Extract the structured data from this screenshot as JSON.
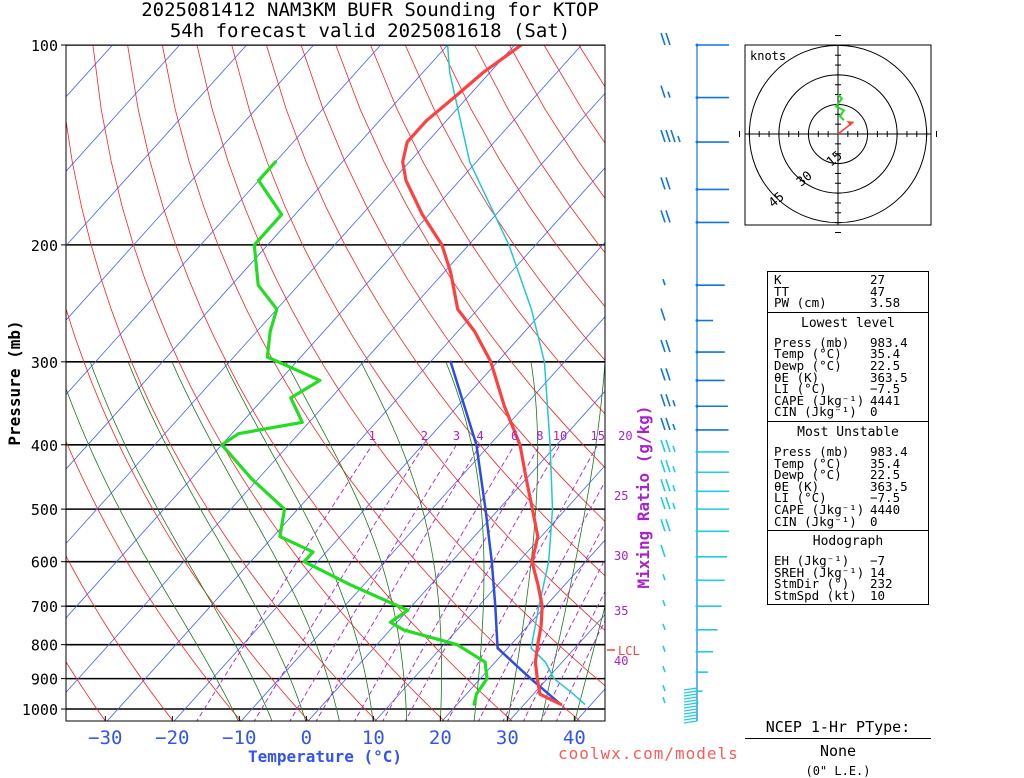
{
  "title": {
    "line1": "2025081412 NAM3KM BUFR Sounding for KTOP",
    "line2": "54h forecast valid 2025081618 (Sat)"
  },
  "axes": {
    "pressure_label": "Pressure (mb)",
    "temperature_label": "Temperature (°C)",
    "mixing_ratio_label": "Mixing Ratio (g/kg)",
    "pressure_ticks": [
      "100",
      "200",
      "300",
      "400",
      "500",
      "600",
      "700",
      "800",
      "900",
      "1000"
    ],
    "temperature_ticks": [
      "−30",
      "−20",
      "−10",
      "0",
      "10",
      "20",
      "30",
      "40"
    ],
    "mixing_ratio_ticks_top": [
      "1",
      "2",
      "3",
      "4",
      "6",
      "8",
      "10",
      "15",
      "20"
    ],
    "mixing_ratio_ticks_side": [
      "25",
      "30",
      "35",
      "40"
    ],
    "lcl_label": "LCL"
  },
  "hodograph": {
    "unit_label": "knots",
    "ring_labels": [
      "15",
      "30",
      "45"
    ]
  },
  "indices": {
    "top": [
      {
        "k": "K",
        "v": "27"
      },
      {
        "k": "TT",
        "v": "47"
      },
      {
        "k": "PW (cm)",
        "v": "3.58"
      }
    ],
    "lowest": {
      "header": "Lowest level",
      "rows": [
        {
          "k": "Press (mb)",
          "v": "983.4"
        },
        {
          "k": "Temp (°C)",
          "v": "35.4"
        },
        {
          "k": "Dewp (°C)",
          "v": "22.5"
        },
        {
          "k": "θE (K)",
          "v": "363.5"
        },
        {
          "k": "LI (°C)",
          "v": "−7.5"
        },
        {
          "k": "CAPE (Jkg⁻¹)",
          "v": "4441"
        },
        {
          "k": "CIN (Jkg⁻¹)",
          "v": "0"
        }
      ]
    },
    "unstable": {
      "header": "Most Unstable",
      "rows": [
        {
          "k": "Press (mb)",
          "v": "983.4"
        },
        {
          "k": "Temp (°C)",
          "v": "35.4"
        },
        {
          "k": "Dewp (°C)",
          "v": "22.5"
        },
        {
          "k": "θE (K)",
          "v": "363.5"
        },
        {
          "k": "LI (°C)",
          "v": "−7.5"
        },
        {
          "k": "CAPE (Jkg⁻¹)",
          "v": "4440"
        },
        {
          "k": "CIN (Jkg⁻¹)",
          "v": "0"
        }
      ]
    },
    "hodo": {
      "header": "Hodograph",
      "rows": [
        {
          "k": "EH (Jkg⁻¹)",
          "v": "−7"
        },
        {
          "k": "SREH (Jkg⁻¹)",
          "v": "14"
        },
        {
          "k": "StmDir (°)",
          "v": "232"
        },
        {
          "k": "StmSpd (kt)",
          "v": "10"
        }
      ]
    }
  },
  "ptype": {
    "title": "NCEP 1-Hr PType:",
    "value": "None",
    "snow": "(0\" L.E.)"
  },
  "credit": "coolwx.com/models",
  "colors": {
    "temperature": "#ff4040",
    "dewpoint": "#22dd22",
    "parcel": "#2a4fe0",
    "virtual_temp": "#22c8d0",
    "isotherm": "#4060ff",
    "dry_adiabat": "#ff2020",
    "moist_adiabat": "#1a7a1a",
    "mixing_ratio": "#aa22cc",
    "wind_upper": "#1177dd",
    "wind_lower": "#22ccdd"
  },
  "chart_data": {
    "type": "line",
    "temperature": [
      {
        "p": 983.4,
        "t": 35.4
      },
      {
        "p": 950,
        "t": 31
      },
      {
        "p": 900,
        "t": 28.5
      },
      {
        "p": 850,
        "t": 26
      },
      {
        "p": 800,
        "t": 24
      },
      {
        "p": 750,
        "t": 22
      },
      {
        "p": 700,
        "t": 19.5
      },
      {
        "p": 650,
        "t": 16
      },
      {
        "p": 600,
        "t": 12
      },
      {
        "p": 550,
        "t": 9.5
      },
      {
        "p": 500,
        "t": 5
      },
      {
        "p": 450,
        "t": 0
      },
      {
        "p": 400,
        "t": -5.5
      },
      {
        "p": 350,
        "t": -13
      },
      {
        "p": 300,
        "t": -21
      },
      {
        "p": 270,
        "t": -27.5
      },
      {
        "p": 250,
        "t": -33
      },
      {
        "p": 220,
        "t": -39
      },
      {
        "p": 200,
        "t": -44
      },
      {
        "p": 180,
        "t": -51
      },
      {
        "p": 160,
        "t": -58
      },
      {
        "p": 150,
        "t": -61
      },
      {
        "p": 140,
        "t": -63
      },
      {
        "p": 130,
        "t": -63
      },
      {
        "p": 120,
        "t": -62
      },
      {
        "p": 110,
        "t": -61
      },
      {
        "p": 100,
        "t": -59
      }
    ],
    "dewpoint": [
      {
        "p": 983.4,
        "t": 22.5
      },
      {
        "p": 950,
        "t": 21.5
      },
      {
        "p": 900,
        "t": 21
      },
      {
        "p": 870,
        "t": 19.5
      },
      {
        "p": 850,
        "t": 18.5
      },
      {
        "p": 800,
        "t": 12
      },
      {
        "p": 760,
        "t": 2
      },
      {
        "p": 740,
        "t": -1
      },
      {
        "p": 710,
        "t": 0
      },
      {
        "p": 700,
        "t": -2
      },
      {
        "p": 650,
        "t": -12
      },
      {
        "p": 600,
        "t": -22
      },
      {
        "p": 580,
        "t": -22
      },
      {
        "p": 550,
        "t": -29
      },
      {
        "p": 500,
        "t": -32
      },
      {
        "p": 450,
        "t": -41
      },
      {
        "p": 400,
        "t": -50
      },
      {
        "p": 385,
        "t": -49
      },
      {
        "p": 370,
        "t": -41
      },
      {
        "p": 340,
        "t": -46
      },
      {
        "p": 320,
        "t": -44
      },
      {
        "p": 295,
        "t": -55
      },
      {
        "p": 270,
        "t": -58
      },
      {
        "p": 250,
        "t": -60
      },
      {
        "p": 230,
        "t": -66
      },
      {
        "p": 200,
        "t": -72
      },
      {
        "p": 180,
        "t": -72
      },
      {
        "p": 160,
        "t": -80
      },
      {
        "p": 150,
        "t": -80
      }
    ],
    "parcel": [
      {
        "p": 983.4,
        "t": 35.4
      },
      {
        "p": 900,
        "t": 27.5
      },
      {
        "p": 810,
        "t": 18.5
      },
      {
        "p": 700,
        "t": 12.5
      },
      {
        "p": 600,
        "t": 6
      },
      {
        "p": 500,
        "t": -2
      },
      {
        "p": 400,
        "t": -12
      },
      {
        "p": 300,
        "t": -27
      }
    ],
    "virtual_temp": [
      {
        "p": 983.4,
        "t": 39
      },
      {
        "p": 950,
        "t": 36
      },
      {
        "p": 900,
        "t": 31
      },
      {
        "p": 850,
        "t": 27.5
      },
      {
        "p": 810,
        "t": 23.5
      },
      {
        "p": 700,
        "t": 19
      },
      {
        "p": 600,
        "t": 14.5
      },
      {
        "p": 500,
        "t": 8
      },
      {
        "p": 400,
        "t": -1
      },
      {
        "p": 300,
        "t": -13
      },
      {
        "p": 250,
        "t": -22
      },
      {
        "p": 200,
        "t": -34
      },
      {
        "p": 150,
        "t": -51
      },
      {
        "p": 110,
        "t": -66
      },
      {
        "p": 100,
        "t": -70
      }
    ],
    "lcl_pressure": 815,
    "xlim": [
      -40,
      42
    ],
    "pressure_range": [
      1050,
      100
    ],
    "wind_barbs": [
      {
        "p": 100,
        "dir": 270,
        "kt": 20
      },
      {
        "p": 120,
        "dir": 275,
        "kt": 15
      },
      {
        "p": 140,
        "dir": 265,
        "kt": 35
      },
      {
        "p": 165,
        "dir": 270,
        "kt": 20
      },
      {
        "p": 185,
        "dir": 270,
        "kt": 20
      },
      {
        "p": 230,
        "dir": 300,
        "kt": 5
      },
      {
        "p": 260,
        "dir": 330,
        "kt": 10
      },
      {
        "p": 290,
        "dir": 300,
        "kt": 20
      },
      {
        "p": 320,
        "dir": 300,
        "kt": 20
      },
      {
        "p": 350,
        "dir": 285,
        "kt": 25
      },
      {
        "p": 380,
        "dir": 280,
        "kt": 25
      },
      {
        "p": 410,
        "dir": 275,
        "kt": 25
      },
      {
        "p": 440,
        "dir": 275,
        "kt": 25
      },
      {
        "p": 470,
        "dir": 270,
        "kt": 25
      },
      {
        "p": 500,
        "dir": 270,
        "kt": 25
      },
      {
        "p": 540,
        "dir": 265,
        "kt": 20
      },
      {
        "p": 590,
        "dir": 250,
        "kt": 10
      },
      {
        "p": 640,
        "dir": 240,
        "kt": 5
      },
      {
        "p": 700,
        "dir": 230,
        "kt": 5
      },
      {
        "p": 760,
        "dir": 220,
        "kt": 5
      },
      {
        "p": 820,
        "dir": 210,
        "kt": 5
      },
      {
        "p": 880,
        "dir": 200,
        "kt": 5
      },
      {
        "p": 940,
        "dir": 190,
        "kt": 5
      },
      {
        "p": 980,
        "dir": 180,
        "kt": 5
      }
    ],
    "hodograph_trace": [
      {
        "u": 0,
        "v": 20
      },
      {
        "u": 2,
        "v": 18
      },
      {
        "u": -1,
        "v": 14
      },
      {
        "u": 3,
        "v": 12
      },
      {
        "u": 1,
        "v": 9
      },
      {
        "u": 3,
        "v": 7
      }
    ],
    "storm_motion": {
      "dir": 232,
      "kt": 10
    }
  }
}
